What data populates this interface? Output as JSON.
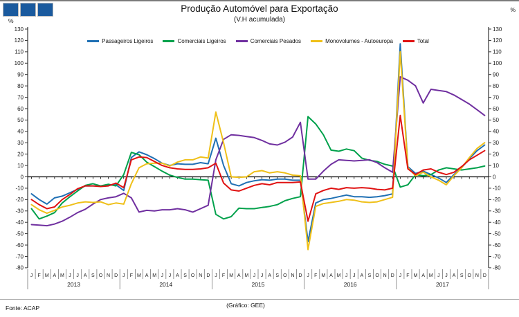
{
  "header": {
    "title": "Produção Automóvel para Exportação",
    "subtitle": "(V.H acumulada)",
    "unit_left": "%",
    "unit_right": "%"
  },
  "logo": {
    "square_count": 3,
    "square_color": "#1A5A9E"
  },
  "footer": {
    "source": "Fonte: ACAP",
    "credit": "(Gráfico: GEE)"
  },
  "chart_data": {
    "type": "line",
    "title": "Produção Automóvel para Exportação",
    "subtitle": "(V.H acumulada)",
    "unit": "%",
    "ylim": [
      -80,
      130
    ],
    "ytick_step": 10,
    "grid": "zero-line-only",
    "legend_position": "top",
    "x_description": "monthly, January 2013 to December 2017",
    "years": [
      "2013",
      "2014",
      "2015",
      "2016",
      "2017"
    ],
    "month_letters": [
      "J",
      "F",
      "M",
      "A",
      "M",
      "J",
      "J",
      "A",
      "S",
      "O",
      "N",
      "D"
    ],
    "series": [
      {
        "name": "Passageiros Ligeiros",
        "color": "#2070B4",
        "values": [
          -15,
          -20,
          -24,
          -18.5,
          -17,
          -14,
          -11,
          -8,
          -8,
          -8,
          -7.5,
          -7,
          -12,
          17,
          22,
          19.5,
          16,
          12,
          10,
          11.5,
          11,
          11,
          12.5,
          11.5,
          34,
          10,
          -6,
          -8,
          -5,
          -3.5,
          -2.5,
          -3,
          -2,
          -2,
          -3,
          -3,
          -57,
          -23,
          -20,
          -19,
          -17.5,
          -16,
          -17.5,
          -17.5,
          -18,
          -17.5,
          -16.5,
          -15,
          117,
          9,
          3,
          5,
          2,
          -1,
          -5,
          2,
          8,
          16,
          23,
          28
        ]
      },
      {
        "name": "Comerciais Ligeiros",
        "color": "#00A14B",
        "values": [
          -28,
          -37,
          -34.5,
          -31.5,
          -23,
          -17.5,
          -12.5,
          -7.5,
          -6,
          -8,
          -6.5,
          -8,
          2,
          21.5,
          19.5,
          13,
          9,
          5,
          1.5,
          -0.5,
          -2,
          -2,
          -2.5,
          -3,
          -33,
          -37,
          -35,
          -27.5,
          -28,
          -28,
          -27,
          -26,
          -24.5,
          -21,
          -19,
          -17.5,
          53,
          46.5,
          37,
          23.5,
          22.5,
          24.5,
          23,
          16.5,
          14.5,
          13.5,
          11,
          9.5,
          -9,
          -7,
          2,
          1,
          2,
          6,
          8,
          7,
          6,
          7,
          8,
          9.5
        ]
      },
      {
        "name": "Comerciais Pesados",
        "color": "#7030A0",
        "values": [
          -42,
          -42.5,
          -43,
          -41.5,
          -39,
          -35.5,
          -31.5,
          -28.5,
          -24,
          -20,
          -18.5,
          -17.5,
          -14.5,
          -18.5,
          -31,
          -29.5,
          -30,
          -29,
          -29,
          -28,
          -29,
          -31,
          -28,
          -25,
          15,
          33,
          37,
          36.5,
          35.5,
          34.5,
          32,
          29,
          28,
          30.5,
          35,
          48,
          -2,
          -2,
          5,
          11,
          15,
          14.5,
          14,
          14.5,
          15,
          12.5,
          8,
          4,
          88,
          85,
          80,
          65,
          77,
          76,
          75,
          72,
          68,
          64,
          59,
          54
        ]
      },
      {
        "name": "Monovolumes - Autoeuropa",
        "color": "#EFC019",
        "values": [
          -24.5,
          -29,
          -32,
          -29.5,
          -26.5,
          -25,
          -23,
          -22,
          -22.5,
          -22,
          -24.5,
          -23,
          -24,
          -6,
          8,
          11.5,
          12,
          12,
          9.5,
          13,
          15,
          15,
          17.5,
          16.5,
          57,
          30,
          0,
          -0.5,
          0,
          4.5,
          5.5,
          3.5,
          4.5,
          3.5,
          1.5,
          1,
          -64,
          -26,
          -23.5,
          -22.5,
          -21.5,
          -20,
          -20.5,
          -22,
          -22.5,
          -22,
          -20,
          -18,
          110,
          8,
          1,
          4,
          0,
          -3,
          -7,
          1,
          8,
          17,
          25,
          30
        ]
      },
      {
        "name": "Total",
        "color": "#E01212",
        "values": [
          -20,
          -24.5,
          -28,
          -26.5,
          -20,
          -15.5,
          -10.5,
          -8,
          -8,
          -8.5,
          -8,
          -5.5,
          -9.5,
          15,
          17.5,
          17,
          13.5,
          10,
          8,
          7,
          6.5,
          6.5,
          7,
          8,
          12,
          -5.5,
          -11.5,
          -12.5,
          -10,
          -7.5,
          -6,
          -7,
          -5,
          -5,
          -5,
          -4.5,
          -39,
          -15,
          -12,
          -10,
          -11,
          -9.5,
          -10,
          -9.5,
          -10,
          -11,
          -11.5,
          -10,
          54,
          7,
          2,
          6,
          7,
          4,
          2,
          4,
          9,
          15,
          19,
          23
        ]
      }
    ]
  }
}
